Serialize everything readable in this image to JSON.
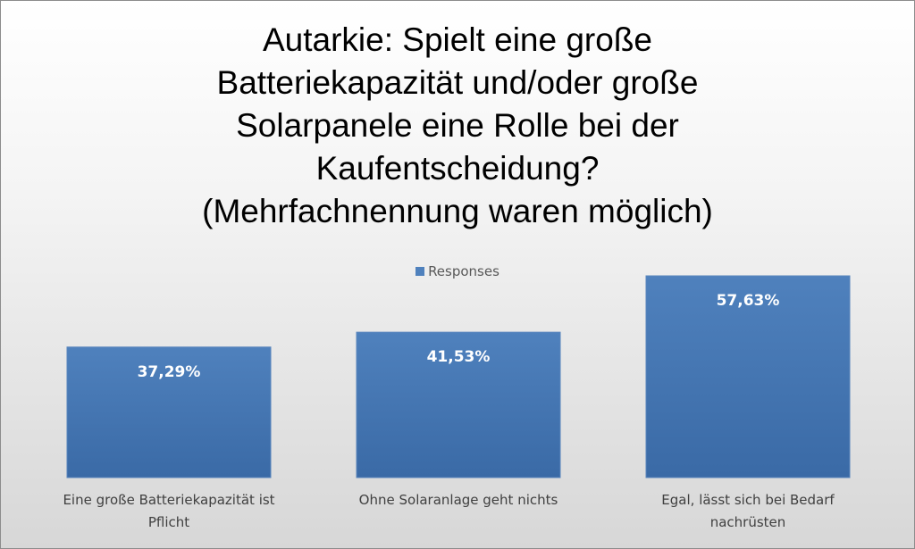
{
  "chart_data": {
    "type": "bar",
    "title_lines": [
      "Autarkie: Spielt eine große",
      "Batteriekapazität und/oder große",
      "Solarpanele eine Rolle bei der",
      "Kaufentscheidung?",
      "(Mehrfachnennung waren möglich)"
    ],
    "categories": [
      [
        "Eine große Batteriekapazität ist",
        "Pflicht"
      ],
      [
        "Ohne Solaranlage geht nichts"
      ],
      [
        "Egal, lässt sich bei Bedarf",
        "nachrüsten"
      ]
    ],
    "series": [
      {
        "name": "Responses",
        "values": [
          37.29,
          41.53,
          57.63
        ],
        "labels": [
          "37,29%",
          "41,53%",
          "57,63%"
        ],
        "color": "#4f81bd"
      }
    ],
    "ylim": [
      0,
      100
    ],
    "grid": false,
    "legend_position": "top"
  }
}
